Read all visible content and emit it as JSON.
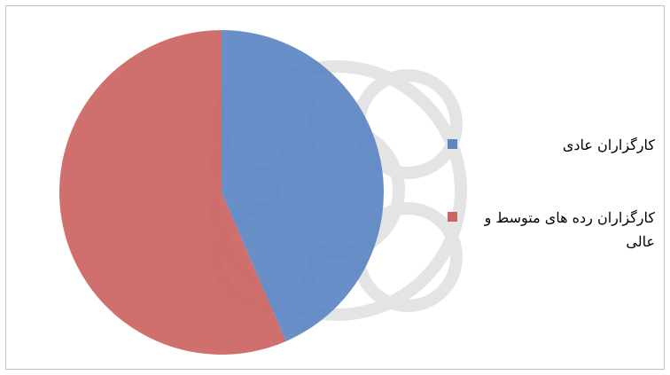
{
  "chart_data": {
    "type": "pie",
    "categories": [
      "کارگزاران عادی",
      "کارگزاران رده های متوسط و عالی"
    ],
    "values": [
      43.5,
      56.5
    ],
    "colors": [
      "#5b86c2",
      "#cc6462"
    ],
    "legend": "right"
  }
}
